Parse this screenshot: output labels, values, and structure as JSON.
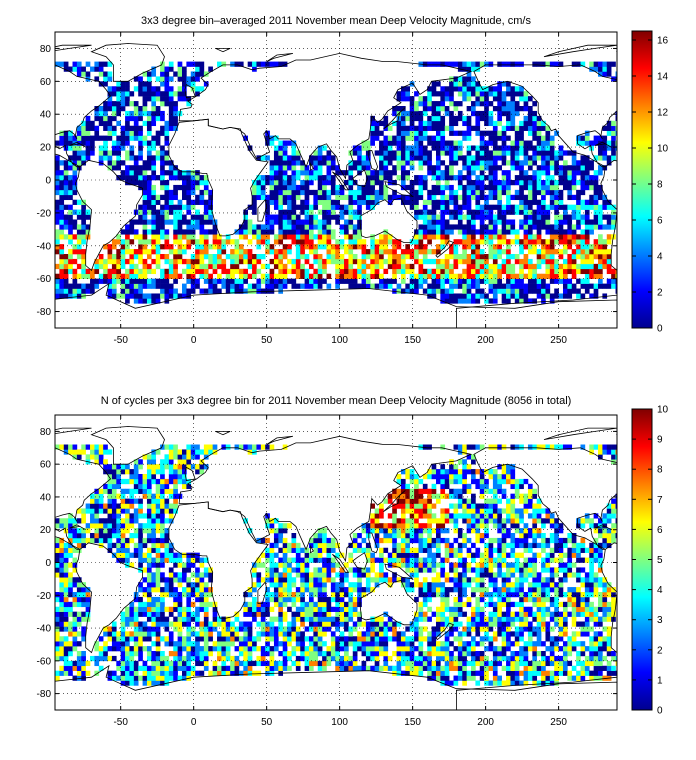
{
  "chart_data": [
    {
      "type": "heatmap",
      "title": "3x3 degree bin–averaged 2011 November mean Deep Velocity Magnitude, cm/s",
      "xlabel": "",
      "ylabel": "",
      "xlim": [
        -95,
        290
      ],
      "ylim": [
        -90,
        90
      ],
      "x_ticks": [
        -50,
        0,
        50,
        100,
        150,
        200,
        250
      ],
      "y_ticks": [
        -80,
        -60,
        -40,
        -20,
        0,
        20,
        40,
        60,
        80
      ],
      "grid": true,
      "bin_size_deg": 3,
      "colorbar": {
        "range": [
          0,
          16.5
        ],
        "ticks": [
          0,
          2,
          4,
          6,
          8,
          10,
          12,
          14,
          16
        ],
        "colormap": "jet"
      }
    },
    {
      "type": "heatmap",
      "title": "N of cycles per 3x3 degree bin for 2011 November mean Deep Velocity Magnitude (8056 in total)",
      "xlabel": "",
      "ylabel": "",
      "xlim": [
        -95,
        290
      ],
      "ylim": [
        -90,
        90
      ],
      "x_ticks": [
        -50,
        0,
        50,
        100,
        150,
        200,
        250
      ],
      "y_ticks": [
        -80,
        -60,
        -40,
        -20,
        0,
        20,
        40,
        60,
        80
      ],
      "grid": true,
      "bin_size_deg": 3,
      "colorbar": {
        "range": [
          0,
          10
        ],
        "ticks": [
          0,
          1,
          2,
          3,
          4,
          5,
          6,
          7,
          8,
          9,
          10
        ],
        "colormap": "jet"
      }
    }
  ],
  "colors": {
    "jet": [
      "#00008f",
      "#0000ff",
      "#0080ff",
      "#00ffff",
      "#80ff80",
      "#ffff00",
      "#ff8000",
      "#ff0000",
      "#800000"
    ],
    "land_outline": "#000000",
    "grid": "#000000"
  }
}
